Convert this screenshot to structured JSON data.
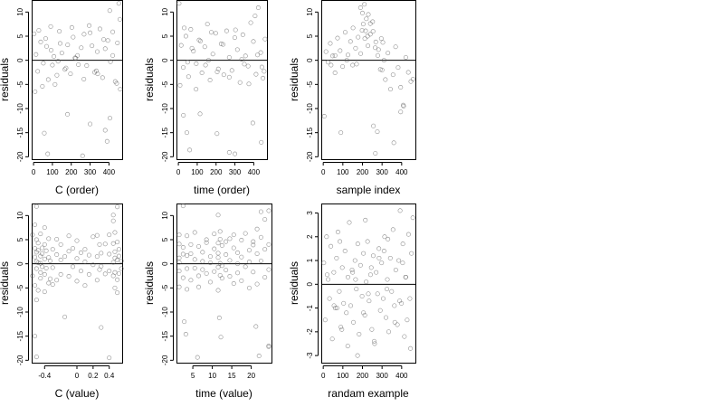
{
  "chart_data": [
    {
      "type": "scatter",
      "title": "",
      "xlabel": "C (order)",
      "ylabel": "residuals",
      "xlim": [
        -10,
        470
      ],
      "ylim": [
        -20.5,
        12.5
      ],
      "xticks": [
        0,
        100,
        200,
        300,
        400
      ],
      "yticks": [
        -20,
        -15,
        -10,
        -5,
        0,
        5,
        10
      ],
      "hline": 0,
      "x": [
        3,
        13,
        22,
        38,
        52,
        64,
        78,
        93,
        108,
        124,
        137,
        150,
        166,
        181,
        196,
        210,
        224,
        238,
        253,
        268,
        282,
        295,
        310,
        324,
        338,
        352,
        366,
        380,
        394,
        408,
        420,
        433,
        445,
        458,
        8,
        28,
        47,
        69,
        91,
        114,
        141,
        172,
        203,
        233,
        267,
        300,
        333,
        372,
        404,
        441,
        452,
        57,
        75,
        180,
        260,
        300,
        380,
        390,
        405,
        460,
        100,
        220,
        340,
        130,
        420
      ],
      "y": [
        5.5,
        1.2,
        -2.3,
        3.8,
        -0.6,
        4.5,
        -4.0,
        2.1,
        0.8,
        -3.1,
        6.0,
        1.5,
        -1.9,
        3.2,
        -2.8,
        4.8,
        0.4,
        -0.9,
        2.6,
        5.4,
        -1.1,
        7.2,
        3.0,
        -2.5,
        1.8,
        6.5,
        -3.6,
        2.4,
        4.1,
        -0.3,
        5.9,
        -4.4,
        3.6,
        8.5,
        -6.5,
        6.2,
        -5.4,
        2.9,
        7.0,
        -5.0,
        3.5,
        -1.6,
        6.8,
        1.0,
        -3.9,
        5.7,
        -2.2,
        4.3,
        10.3,
        -4.8,
        11.8,
        -15.1,
        -19.4,
        -11.2,
        -19.8,
        -13.2,
        -14.5,
        -16.8,
        -12.0,
        -6.0,
        -1.0,
        0.5,
        -2.8,
        -0.2,
        1.0
      ]
    },
    {
      "type": "scatter",
      "title": "",
      "xlabel": "time (order)",
      "ylabel": "residuals",
      "xlim": [
        -10,
        470
      ],
      "ylim": [
        -20.5,
        12.5
      ],
      "xticks": [
        0,
        100,
        200,
        300,
        400
      ],
      "yticks": [
        -20,
        -15,
        -10,
        -5,
        0,
        5,
        10
      ],
      "hline": 0,
      "x": [
        4,
        15,
        26,
        40,
        54,
        66,
        80,
        95,
        110,
        125,
        140,
        154,
        168,
        183,
        198,
        212,
        227,
        241,
        256,
        270,
        284,
        299,
        313,
        327,
        342,
        356,
        370,
        384,
        398,
        412,
        424,
        437,
        449,
        460,
        9,
        31,
        49,
        72,
        94,
        117,
        144,
        175,
        206,
        237,
        270,
        303,
        336,
        374,
        407,
        443,
        455,
        27,
        45,
        60,
        115,
        205,
        270,
        300,
        395,
        440,
        160,
        350,
        420
      ],
      "y": [
        11.8,
        3.1,
        -1.5,
        5.0,
        -3.4,
        6.4,
        1.9,
        -0.7,
        4.2,
        -2.6,
        2.8,
        7.5,
        -4.1,
        1.3,
        5.6,
        -1.8,
        3.4,
        -3.0,
        6.1,
        0.6,
        -2.1,
        4.7,
        2.2,
        -4.6,
        5.3,
        0.9,
        -1.2,
        7.8,
        3.9,
        -2.9,
        10.9,
        1.6,
        -3.7,
        4.4,
        -5.2,
        6.7,
        -0.4,
        2.5,
        -6.0,
        4.0,
        -1.0,
        5.8,
        -2.4,
        3.3,
        -3.5,
        6.3,
        0.2,
        -4.9,
        9.2,
        -1.4,
        -2.3,
        -11.4,
        -15.0,
        -18.6,
        -11.1,
        -15.2,
        -19.1,
        -19.4,
        -13.0,
        -17.0,
        0.0,
        -0.8,
        1.1
      ]
    },
    {
      "type": "scatter",
      "title": "",
      "xlabel": "sample index",
      "ylabel": "residuals",
      "xlim": [
        -10,
        470
      ],
      "ylim": [
        -20.5,
        12.5
      ],
      "xticks": [
        0,
        100,
        200,
        300,
        400
      ],
      "yticks": [
        -20,
        -15,
        -10,
        -5,
        0,
        5,
        10
      ],
      "hline": 0,
      "x": [
        5,
        14,
        24,
        36,
        48,
        60,
        73,
        86,
        99,
        112,
        126,
        139,
        152,
        165,
        178,
        191,
        204,
        216,
        228,
        240,
        252,
        265,
        278,
        291,
        304,
        317,
        330,
        343,
        356,
        369,
        382,
        395,
        408,
        421,
        434,
        447,
        458,
        190,
        200,
        210,
        220,
        230,
        198,
        212,
        226,
        240,
        254,
        268,
        282,
        296,
        310,
        40,
        90,
        120,
        170,
        256,
        266,
        276,
        360,
        395,
        410,
        300,
        150,
        60
      ],
      "y": [
        -11.6,
        1.8,
        -0.4,
        3.5,
        0.9,
        -2.6,
        4.6,
        2.0,
        -1.3,
        5.8,
        1.1,
        3.9,
        6.7,
        2.5,
        4.8,
        1.4,
        7.5,
        6.1,
        3.0,
        5.4,
        8.0,
        2.6,
        1.0,
        -1.9,
        3.7,
        -4.0,
        1.5,
        -6.0,
        -3.0,
        2.8,
        -1.5,
        -5.6,
        -9.3,
        0.6,
        -2.5,
        -4.4,
        -3.9,
        10.9,
        9.8,
        11.6,
        8.6,
        9.5,
        6.2,
        4.5,
        5.0,
        7.6,
        6.0,
        3.8,
        2.2,
        4.5,
        0.0,
        -1.0,
        -15.0,
        0.0,
        -0.8,
        -13.6,
        -19.3,
        -14.8,
        -17.1,
        -10.7,
        -9.5,
        -2.0,
        -1.0,
        1.0
      ]
    },
    {
      "type": "scatter",
      "title": "",
      "xlabel": "C (value)",
      "ylabel": "residuals",
      "xlim": [
        -0.56,
        0.56
      ],
      "ylim": [
        -20.5,
        12.5
      ],
      "xticks": [
        -0.4,
        0.0,
        0.2,
        0.4
      ],
      "yticks": [
        -20,
        -15,
        -10,
        -5,
        0,
        5,
        10
      ],
      "hline": 0,
      "x": [
        -0.55,
        -0.55,
        -0.52,
        -0.52,
        -0.52,
        -0.52,
        -0.52,
        -0.5,
        -0.5,
        -0.5,
        -0.5,
        -0.5,
        -0.5,
        -0.5,
        -0.48,
        -0.48,
        -0.48,
        -0.48,
        -0.45,
        -0.45,
        -0.45,
        -0.45,
        -0.45,
        -0.43,
        -0.43,
        -0.43,
        -0.4,
        -0.4,
        -0.4,
        -0.4,
        -0.4,
        -0.38,
        -0.38,
        -0.35,
        -0.35,
        -0.35,
        -0.33,
        -0.33,
        -0.3,
        -0.3,
        -0.3,
        -0.25,
        -0.25,
        -0.25,
        -0.2,
        -0.2,
        -0.2,
        -0.15,
        -0.15,
        -0.1,
        -0.1,
        -0.1,
        -0.05,
        -0.05,
        0.0,
        0.0,
        0.0,
        0.05,
        0.05,
        0.1,
        0.1,
        0.1,
        0.15,
        0.15,
        0.2,
        0.2,
        0.25,
        0.25,
        0.25,
        0.28,
        0.28,
        0.3,
        0.3,
        0.3,
        0.35,
        0.35,
        0.4,
        0.4,
        0.4,
        0.4,
        0.45,
        0.45,
        0.45,
        0.45,
        0.45,
        0.47,
        0.47,
        0.47,
        0.47,
        0.47,
        0.5,
        0.5,
        0.5,
        0.5,
        0.5,
        0.52,
        0.52,
        0.52,
        0.55,
        0.55
      ],
      "y": [
        -2.5,
        6.0,
        8.1,
        -4.5,
        3.2,
        1.4,
        -15.0,
        11.9,
        -7.5,
        5.0,
        -1.0,
        2.4,
        -19.3,
        0.5,
        -5.5,
        2.8,
        0.2,
        4.3,
        6.2,
        -3.0,
        1.6,
        -1.8,
        0.1,
        3.3,
        -0.6,
        2.1,
        -5.8,
        1.0,
        7.5,
        -2.2,
        4.0,
        -0.9,
        2.7,
        5.2,
        -4.0,
        1.3,
        -3.1,
        0.6,
        -4.3,
        3.0,
        -0.8,
        5.1,
        -3.4,
        1.9,
        4.0,
        -2.2,
        0.8,
        -11.0,
        1.5,
        2.6,
        -2.6,
        5.8,
        -0.6,
        3.2,
        -3.6,
        1.1,
        4.8,
        -1.5,
        2.3,
        3.0,
        -4.5,
        0.4,
        1.8,
        -2.2,
        5.6,
        -0.2,
        -3.4,
        1.5,
        5.9,
        4.0,
        -1.2,
        -13.2,
        2.2,
        -0.5,
        4.1,
        -2.1,
        -1.5,
        6.0,
        2.0,
        -19.5,
        8.9,
        10.1,
        -2.5,
        0.3,
        4.2,
        -5.0,
        1.2,
        -1.8,
        6.5,
        2.5,
        11.8,
        -3.3,
        0.8,
        4.5,
        -6.0,
        -2.0,
        1.6,
        3.0,
        -1.0,
        0.6
      ]
    },
    {
      "type": "scatter",
      "title": "",
      "xlabel": "time (value)",
      "ylabel": "residuals",
      "xlim": [
        0.8,
        25.2
      ],
      "ylim": [
        -20.5,
        12.5
      ],
      "xticks": [
        5,
        10,
        15,
        20
      ],
      "yticks": [
        -20,
        -15,
        -10,
        -5,
        0,
        5,
        10
      ],
      "hline": 0,
      "x": [
        1.5,
        1.5,
        1.5,
        1.5,
        1.5,
        1.5,
        2.5,
        2.5,
        2.5,
        2.5,
        3.5,
        3.5,
        3.5,
        3.5,
        4.5,
        4.5,
        4.5,
        5.5,
        5.5,
        5.5,
        6.5,
        6.5,
        6.5,
        7.5,
        7.5,
        7.5,
        8.5,
        8.5,
        8.5,
        9.5,
        9.5,
        9.5,
        10.5,
        10.5,
        10.5,
        11.5,
        11.5,
        11.5,
        11.5,
        11.5,
        11.5,
        12.0,
        12.0,
        12.0,
        12.0,
        12.5,
        12.5,
        12.5,
        13.5,
        13.5,
        13.5,
        14.5,
        14.5,
        14.5,
        15.5,
        15.5,
        15.5,
        16.5,
        16.5,
        16.5,
        17.5,
        17.5,
        17.5,
        18.5,
        18.5,
        19.5,
        19.5,
        19.5,
        20.5,
        20.5,
        20.5,
        21.5,
        21.5,
        21.5,
        22.5,
        22.5,
        22.5,
        23.5,
        23.5,
        23.5,
        24.5,
        24.5,
        24.5,
        24.5,
        2.8,
        3.2,
        6.2,
        11.8,
        12.2,
        21.2,
        22.0,
        24.5
      ],
      "y": [
        -1.5,
        4.1,
        1.2,
        -4.8,
        6.0,
        0.3,
        12.0,
        -2.9,
        3.4,
        2.0,
        5.8,
        -1.0,
        1.7,
        -5.3,
        4.0,
        -3.4,
        2.1,
        0.9,
        -0.9,
        6.5,
        3.6,
        -2.5,
        -4.8,
        -1.2,
        2.4,
        0.5,
        5.0,
        -2.0,
        4.4,
        1.5,
        -3.8,
        0.2,
        6.2,
        -1.6,
        3.1,
        -5.5,
        2.2,
        10.1,
        -0.7,
        4.3,
        1.3,
        -2.4,
        6.7,
        0.1,
        5.1,
        -0.4,
        3.8,
        -3.0,
        1.9,
        4.6,
        -1.3,
        5.2,
        -2.6,
        0.7,
        3.3,
        -4.1,
        6.0,
        0.0,
        2.3,
        -1.9,
        4.9,
        -3.5,
        1.4,
        6.3,
        -0.6,
        2.8,
        -5.0,
        0.4,
        4.6,
        -1.7,
        3.9,
        7.2,
        2.1,
        -4.2,
        10.8,
        0.6,
        5.5,
        9.2,
        -2.8,
        3.0,
        11.0,
        -1.2,
        -17.2,
        4.0,
        -12.0,
        -14.6,
        -19.4,
        -11.2,
        -15.2,
        -13.0,
        -19.1,
        -17.0
      ]
    },
    {
      "type": "scatter",
      "title": "",
      "xlabel": "randam example",
      "ylabel": "residuals",
      "xlim": [
        -10,
        470
      ],
      "ylim": [
        -3.3,
        3.4
      ],
      "xticks": [
        0,
        100,
        200,
        300,
        400
      ],
      "yticks": [
        -3,
        -2,
        -1,
        0,
        1,
        2,
        3
      ],
      "hline": 0,
      "x": [
        3,
        10,
        17,
        25,
        32,
        39,
        46,
        54,
        61,
        68,
        75,
        82,
        90,
        97,
        104,
        111,
        118,
        126,
        133,
        140,
        147,
        154,
        162,
        169,
        176,
        183,
        190,
        198,
        205,
        212,
        219,
        226,
        234,
        241,
        248,
        255,
        262,
        270,
        277,
        284,
        291,
        298,
        306,
        313,
        320,
        327,
        334,
        342,
        349,
        356,
        363,
        370,
        378,
        385,
        392,
        399,
        406,
        414,
        421,
        428,
        435,
        442,
        450,
        457,
        20,
        55,
        85,
        125,
        165,
        205,
        245,
        285,
        325,
        365,
        405,
        445,
        70,
        150,
        230,
        310,
        390,
        175,
        260,
        330,
        420,
        95,
        215
      ],
      "y": [
        0.9,
        -1.5,
        2.0,
        0.2,
        -0.6,
        1.6,
        -2.3,
        0.5,
        -1.0,
        1.1,
        2.2,
        -0.3,
        -1.8,
        0.7,
        -0.8,
        1.4,
        -1.2,
        0.3,
        2.6,
        -0.9,
        0.6,
        -1.6,
        1.0,
        -0.2,
        1.7,
        -2.1,
        0.8,
        -0.5,
        1.3,
        -1.3,
        0.1,
        1.8,
        -0.7,
        0.4,
        -1.9,
        1.2,
        -2.5,
        0.5,
        -0.4,
        1.5,
        -1.1,
        0.9,
        -0.6,
        2.0,
        -1.4,
        0.2,
        -2.0,
        1.1,
        -0.3,
        2.3,
        -0.9,
        0.6,
        -1.7,
        1.0,
        3.1,
        -0.8,
        1.7,
        -2.2,
        0.3,
        -1.5,
        2.1,
        -0.6,
        1.3,
        2.8,
        0.4,
        -0.9,
        1.8,
        -2.6,
        0.2,
        -1.2,
        0.7,
        1.1,
        -0.2,
        -1.6,
        0.9,
        -2.7,
        -1.0,
        0.5,
        -0.4,
        1.4,
        -0.7,
        -3.0,
        -2.4,
        1.9,
        0.3,
        -1.9,
        2.7
      ]
    }
  ]
}
